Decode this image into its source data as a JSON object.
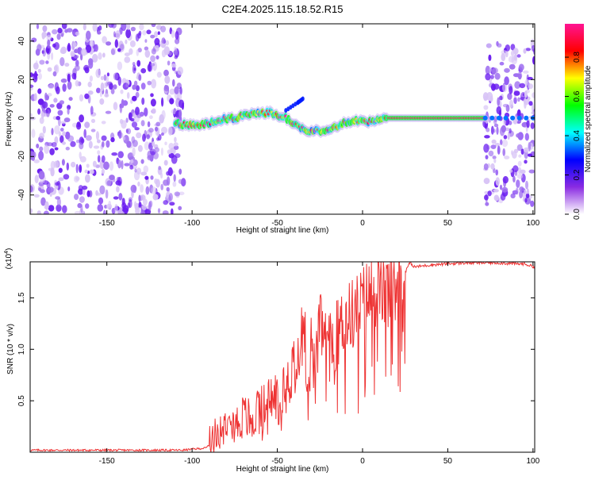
{
  "figure": {
    "title": "C2E4.2025.115.18.52.R15"
  },
  "chart_data": [
    {
      "type": "heatmap",
      "title": "C2E4.2025.115.18.52.R15",
      "xlabel": "Height of straight line (km)",
      "ylabel": "Frequency (Hz)",
      "xlim": [
        -195,
        101
      ],
      "ylim": [
        -50,
        49
      ],
      "xticks": [
        -150,
        -100,
        -50,
        0,
        50,
        100
      ],
      "yticks": [
        -40,
        -20,
        0,
        20,
        40
      ],
      "grid": false,
      "colorbar": {
        "label": "Normalized spectral amplitude",
        "range": [
          0,
          0.97
        ],
        "ticks": [
          0.0,
          0.2,
          0.4,
          0.6,
          0.8
        ],
        "tick_labels": [
          "0.0",
          "0.2",
          "0.4",
          "0.6",
          "0.8"
        ],
        "colors": [
          "#ffffff",
          "#8a2be2",
          "#0000ff",
          "#00ffff",
          "#00ff00",
          "#ffff00",
          "#ff0000",
          "#ff1493"
        ]
      },
      "ridge": [
        {
          "x": -110,
          "y": -3
        },
        {
          "x": -95,
          "y": -4
        },
        {
          "x": -85,
          "y": -1
        },
        {
          "x": -75,
          "y": 0
        },
        {
          "x": -65,
          "y": 2
        },
        {
          "x": -55,
          "y": 3
        },
        {
          "x": -45,
          "y": 0
        },
        {
          "x": -35,
          "y": -6
        },
        {
          "x": -25,
          "y": -7
        },
        {
          "x": -15,
          "y": -4
        },
        {
          "x": -5,
          "y": -1
        },
        {
          "x": 5,
          "y": -2
        },
        {
          "x": 15,
          "y": 0
        },
        {
          "x": 25,
          "y": 0
        },
        {
          "x": 50,
          "y": 0
        },
        {
          "x": 72,
          "y": 0
        }
      ],
      "branch": [
        {
          "x": -45,
          "y": 4
        },
        {
          "x": -38,
          "y": 8
        },
        {
          "x": -35,
          "y": 10
        }
      ],
      "noise_regions": [
        {
          "x": [
            -195,
            -105
          ],
          "y": [
            -50,
            49
          ],
          "level": 0.35
        },
        {
          "x": [
            72,
            101
          ],
          "y": [
            -45,
            40
          ],
          "level": 0.35
        }
      ]
    },
    {
      "type": "line",
      "xlabel": "Height of straight line (km)",
      "ylabel": "SNR (10 * v/v)",
      "y_multiplier": "(x10^4)",
      "xlim": [
        -195,
        101
      ],
      "ylim": [
        0,
        1.85
      ],
      "xticks": [
        -150,
        -100,
        -50,
        0,
        50,
        100
      ],
      "yticks": [
        0.5,
        1.0,
        1.5
      ],
      "ytick_labels": [
        "0.5",
        "1.0",
        "1.5"
      ],
      "grid": false,
      "color": "#ee3333",
      "series": [
        {
          "x": [
            -195,
            -150,
            -105,
            -100,
            -92,
            -88,
            -85,
            -80,
            -78,
            -75,
            -70,
            -65,
            -60,
            -55,
            -50,
            -47,
            -45,
            -42,
            -40,
            -37,
            -35,
            -32,
            -30,
            -28,
            -25,
            -20,
            -15,
            -10,
            -5,
            0,
            5,
            10,
            15,
            20,
            25,
            28,
            30,
            40,
            50,
            60,
            70,
            80,
            90,
            95,
            101
          ],
          "y": [
            0.02,
            0.02,
            0.02,
            0.03,
            0.04,
            0.1,
            0.2,
            0.3,
            0.5,
            0.25,
            0.35,
            0.3,
            0.4,
            0.5,
            0.55,
            0.65,
            0.85,
            0.7,
            1.0,
            0.8,
            1.5,
            0.55,
            1.1,
            0.7,
            1.25,
            1.0,
            1.15,
            1.3,
            1.35,
            1.45,
            1.55,
            1.6,
            1.55,
            1.65,
            1.75,
            1.85,
            1.8,
            1.82,
            1.83,
            1.84,
            1.84,
            1.84,
            1.83,
            1.83,
            1.8
          ]
        }
      ]
    }
  ]
}
